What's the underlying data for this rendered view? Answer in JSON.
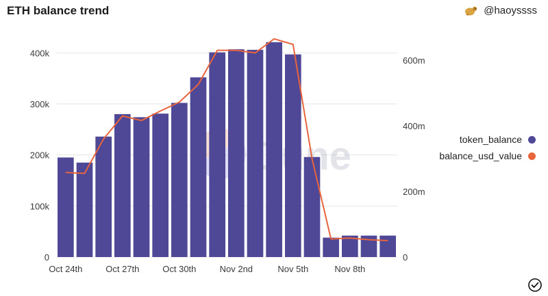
{
  "header": {
    "title": "ETH balance trend",
    "author": "@haoyssss"
  },
  "watermark": "Dune",
  "colors": {
    "bar": "#4f4896",
    "line": "#e8643c",
    "grid": "#e6e6e6"
  },
  "chart_data": {
    "type": "bar+line",
    "categories": [
      "Oct 24th",
      "Oct 25th",
      "Oct 26th",
      "Oct 27th",
      "Oct 28th",
      "Oct 29th",
      "Oct 30th",
      "Oct 31st",
      "Nov 1st",
      "Nov 2nd",
      "Nov 3rd",
      "Nov 4th",
      "Nov 5th",
      "Nov 6th",
      "Nov 7th",
      "Nov 8th",
      "Nov 9th",
      "Nov 10th"
    ],
    "x_tick_labels": [
      {
        "index": 0,
        "label": "Oct 24th"
      },
      {
        "index": 3,
        "label": "Oct 27th"
      },
      {
        "index": 6,
        "label": "Oct 30th"
      },
      {
        "index": 9,
        "label": "Nov 2nd"
      },
      {
        "index": 12,
        "label": "Nov 5th"
      },
      {
        "index": 15,
        "label": "Nov 8th"
      }
    ],
    "series": [
      {
        "name": "token_balance",
        "type": "bar",
        "axis": "left",
        "color": "#4f4896",
        "values": [
          195000,
          185000,
          236000,
          280000,
          274000,
          281000,
          302000,
          352000,
          401000,
          407000,
          406000,
          421000,
          397000,
          196000,
          38000,
          42000,
          42000,
          42000
        ]
      },
      {
        "name": "balance_usd_value",
        "type": "line",
        "axis": "right",
        "color": "#e8643c",
        "values": [
          258000000,
          255000000,
          360000000,
          430000000,
          416000000,
          445000000,
          472000000,
          526000000,
          630000000,
          630000000,
          622000000,
          665000000,
          648000000,
          300000000,
          55000000,
          58000000,
          53000000,
          50000000
        ]
      }
    ],
    "left_axis": {
      "min": 0,
      "max": 450000,
      "ticks": [
        0,
        100000,
        200000,
        300000,
        400000
      ],
      "tick_labels": [
        "0",
        "100k",
        "200k",
        "300k",
        "400k"
      ]
    },
    "right_axis": {
      "min": 0,
      "max": 700000000,
      "ticks": [
        0,
        200000000,
        400000000,
        600000000
      ],
      "tick_labels": [
        "0",
        "200m",
        "400m",
        "600m"
      ]
    },
    "legend": {
      "position": "right",
      "entries": [
        "token_balance",
        "balance_usd_value"
      ]
    },
    "grid": true
  }
}
